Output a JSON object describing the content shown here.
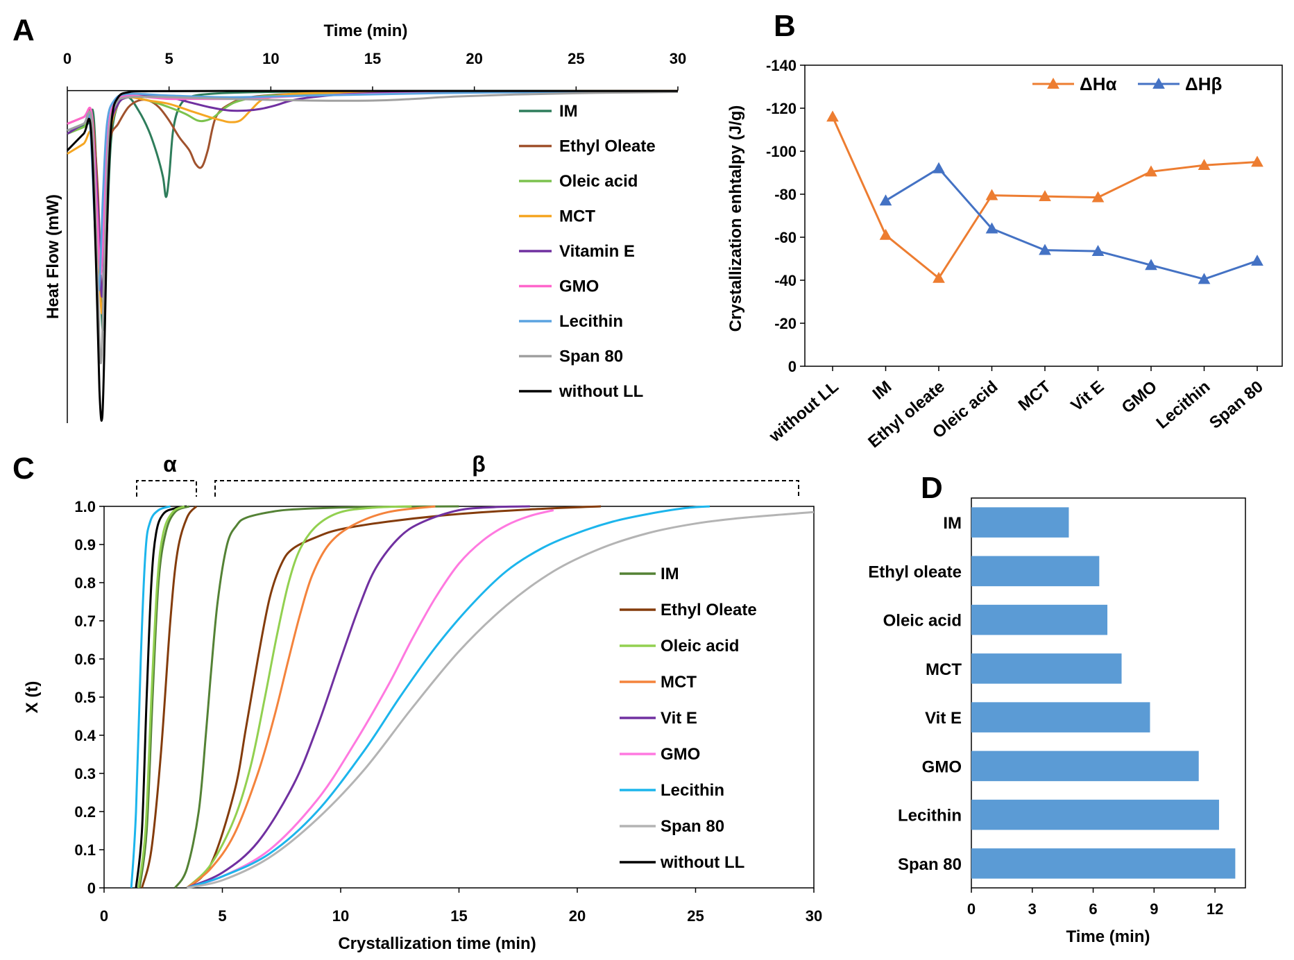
{
  "figure": {
    "panel_letters": [
      "A",
      "B",
      "C",
      "D"
    ],
    "bracket_alpha": "α",
    "bracket_beta": "β"
  },
  "chart_data": [
    {
      "panel": "A",
      "type": "line",
      "title": "",
      "xlabel": "Time (min)",
      "ylabel": "Heat Flow (mW)",
      "xlim": [
        0,
        30
      ],
      "ylim": [
        -1,
        0.02
      ],
      "xticks": [
        0,
        5,
        10,
        15,
        20,
        25,
        30
      ],
      "x_axis_position": "top",
      "y_ticks_shown": false,
      "legend_position": "right",
      "series": [
        {
          "name": "IM",
          "color": "#2E7D5B",
          "x": [
            0,
            1.0,
            1.3,
            1.55,
            1.75,
            1.95,
            2.15,
            2.5,
            3.0,
            3.5,
            4.0,
            4.4,
            4.7,
            4.85,
            5.0,
            5.2,
            5.5,
            6.0,
            7.0,
            9.0,
            12.0,
            16.0,
            20.0,
            25.0,
            30.0
          ],
          "y": [
            -0.12,
            -0.1,
            -0.08,
            -0.45,
            -0.72,
            -0.42,
            -0.15,
            -0.04,
            -0.02,
            -0.06,
            -0.12,
            -0.19,
            -0.26,
            -0.32,
            -0.26,
            -0.12,
            -0.05,
            -0.02,
            -0.01,
            -0.005,
            -0.003,
            -0.002,
            -0.001,
            -0.001,
            -0.001
          ]
        },
        {
          "name": "Ethyl Oleate",
          "color": "#A0522D",
          "x": [
            0,
            0.8,
            1.2,
            1.5,
            1.7,
            1.9,
            2.1,
            2.5,
            3.0,
            3.5,
            4.0,
            4.5,
            5.0,
            5.5,
            6.0,
            6.3,
            6.6,
            6.9,
            7.3,
            8.0,
            9.0,
            11.0,
            14.0,
            18.0,
            24.0,
            30.0
          ],
          "y": [
            -0.1,
            -0.08,
            -0.07,
            -0.3,
            -0.62,
            -0.35,
            -0.15,
            -0.1,
            -0.05,
            -0.03,
            -0.03,
            -0.05,
            -0.09,
            -0.14,
            -0.18,
            -0.22,
            -0.23,
            -0.18,
            -0.08,
            -0.04,
            -0.02,
            -0.01,
            -0.005,
            -0.003,
            -0.002,
            -0.001
          ]
        },
        {
          "name": "Oleic acid",
          "color": "#7CC24E",
          "x": [
            0,
            0.8,
            1.2,
            1.5,
            1.7,
            1.9,
            2.1,
            2.5,
            3.0,
            4.0,
            5.0,
            5.8,
            6.4,
            6.8,
            7.2,
            7.8,
            8.5,
            10.0,
            14.0,
            20.0,
            30.0
          ],
          "y": [
            -0.13,
            -0.11,
            -0.1,
            -0.38,
            -0.62,
            -0.35,
            -0.12,
            -0.04,
            -0.02,
            -0.03,
            -0.05,
            -0.07,
            -0.09,
            -0.09,
            -0.08,
            -0.05,
            -0.03,
            -0.015,
            -0.008,
            -0.004,
            -0.002
          ]
        },
        {
          "name": "MCT",
          "color": "#F5A623",
          "x": [
            0,
            0.8,
            1.2,
            1.5,
            1.7,
            1.9,
            2.1,
            2.5,
            3.0,
            4.0,
            5.0,
            6.0,
            7.0,
            7.6,
            8.0,
            8.5,
            9.0,
            9.5,
            10.0,
            11.0,
            13.0,
            17.0,
            22.0,
            30.0
          ],
          "y": [
            -0.19,
            -0.16,
            -0.14,
            -0.42,
            -0.67,
            -0.4,
            -0.14,
            -0.04,
            -0.02,
            -0.03,
            -0.04,
            -0.06,
            -0.08,
            -0.09,
            -0.095,
            -0.09,
            -0.06,
            -0.03,
            -0.02,
            -0.01,
            -0.006,
            -0.003,
            -0.002,
            -0.001
          ]
        },
        {
          "name": "Vitamin E",
          "color": "#7030A0",
          "x": [
            0,
            0.8,
            1.2,
            1.5,
            1.7,
            1.9,
            2.1,
            2.5,
            3.0,
            4.0,
            5.0,
            6.0,
            7.0,
            8.0,
            8.8,
            9.5,
            10.2,
            11.0,
            12.0,
            14.0,
            18.0,
            24.0,
            30.0
          ],
          "y": [
            -0.13,
            -0.1,
            -0.09,
            -0.35,
            -0.62,
            -0.35,
            -0.12,
            -0.04,
            -0.02,
            -0.015,
            -0.02,
            -0.035,
            -0.05,
            -0.06,
            -0.06,
            -0.055,
            -0.045,
            -0.03,
            -0.02,
            -0.01,
            -0.005,
            -0.003,
            -0.002
          ]
        },
        {
          "name": "GMO",
          "color": "#FF66CC",
          "x": [
            0,
            0.8,
            1.2,
            1.45,
            1.65,
            1.85,
            2.05,
            2.4,
            3.0,
            4.0,
            5.0,
            6.0,
            8.0,
            10.0,
            12.0,
            15.0,
            20.0,
            25.0,
            30.0
          ],
          "y": [
            -0.1,
            -0.08,
            -0.07,
            -0.35,
            -0.55,
            -0.3,
            -0.1,
            -0.03,
            -0.015,
            -0.02,
            -0.025,
            -0.025,
            -0.025,
            -0.02,
            -0.015,
            -0.01,
            -0.005,
            -0.003,
            -0.002
          ]
        },
        {
          "name": "Lecithin",
          "color": "#5BA3E0",
          "x": [
            0,
            0.8,
            1.1,
            1.35,
            1.55,
            1.75,
            1.95,
            2.3,
            3.0,
            5.0,
            8.0,
            12.0,
            18.0,
            24.0,
            30.0
          ],
          "y": [
            -0.12,
            -0.1,
            -0.09,
            -0.4,
            -0.6,
            -0.32,
            -0.1,
            -0.03,
            -0.01,
            -0.015,
            -0.02,
            -0.015,
            -0.008,
            -0.004,
            -0.002
          ]
        },
        {
          "name": "Span 80",
          "color": "#A0A0A0",
          "x": [
            0,
            0.8,
            1.2,
            1.45,
            1.65,
            1.85,
            2.05,
            2.4,
            3.0,
            5.0,
            8.0,
            12.0,
            15.0,
            17.0,
            19.0,
            22.0,
            26.0,
            30.0
          ],
          "y": [
            -0.12,
            -0.1,
            -0.09,
            -0.48,
            -0.82,
            -0.45,
            -0.13,
            -0.04,
            -0.02,
            -0.02,
            -0.025,
            -0.03,
            -0.03,
            -0.025,
            -0.018,
            -0.012,
            -0.007,
            -0.004
          ]
        },
        {
          "name": "without LL",
          "color": "#000000",
          "x": [
            0,
            0.8,
            1.15,
            1.4,
            1.58,
            1.72,
            1.85,
            2.0,
            2.2,
            2.5,
            3.0,
            4.0,
            8.0,
            15.0,
            30.0
          ],
          "y": [
            -0.18,
            -0.13,
            -0.11,
            -0.5,
            -0.9,
            -0.98,
            -0.7,
            -0.3,
            -0.08,
            -0.02,
            -0.005,
            -0.002,
            -0.001,
            -0.001,
            -0.001
          ]
        }
      ]
    },
    {
      "panel": "B",
      "type": "line",
      "title": "",
      "xlabel": "",
      "ylabel": "Crystallization enhtalpy (J/g)",
      "ylim": [
        0,
        -140
      ],
      "yticks": [
        "-140",
        "-120",
        "-100",
        "-80",
        "-60",
        "-40",
        "-20",
        "0"
      ],
      "ytick_values": [
        -140,
        -120,
        -100,
        -80,
        -60,
        -40,
        -20,
        0
      ],
      "categories": [
        "without LL",
        "IM",
        "Ethyl oleate",
        "Oleic acid",
        "MCT",
        "Vit E",
        "GMO",
        "Lecithin",
        "Span 80"
      ],
      "legend_position": "top-right",
      "series": [
        {
          "name": "ΔHα",
          "color": "#ED7D31",
          "values": [
            -116,
            -61,
            -41,
            -79.5,
            -79,
            -78.5,
            -90.5,
            -93.5,
            -95
          ]
        },
        {
          "name": "ΔHβ",
          "color": "#4472C4",
          "values": [
            null,
            -77,
            -92,
            -64,
            -54,
            -53.5,
            -47,
            -40.5,
            -49
          ]
        }
      ]
    },
    {
      "panel": "C",
      "type": "line",
      "title": "",
      "xlabel": "Crystallization time (min)",
      "ylabel": "X (t)",
      "xlim": [
        0,
        30
      ],
      "ylim": [
        0,
        1
      ],
      "xticks": [
        0,
        5,
        10,
        15,
        20,
        25,
        30
      ],
      "yticks": [
        "0",
        "0.1",
        "0.2",
        "0.3",
        "0.4",
        "0.5",
        "0.6",
        "0.7",
        "0.8",
        "0.9",
        "1.0"
      ],
      "ytick_values": [
        0,
        0.1,
        0.2,
        0.3,
        0.4,
        0.5,
        0.6,
        0.7,
        0.8,
        0.9,
        1.0
      ],
      "legend_position": "right",
      "series": [
        {
          "name": "IM",
          "color": "#548235",
          "x": [
            3.0,
            3.5,
            4.0,
            4.3,
            4.5,
            4.8,
            5.2,
            5.6,
            6.0,
            7.0,
            8.0,
            10.0,
            12.0,
            15.0
          ],
          "y": [
            0,
            0.05,
            0.2,
            0.4,
            0.55,
            0.75,
            0.9,
            0.95,
            0.97,
            0.985,
            0.992,
            0.997,
            0.999,
            1.0
          ]
        },
        {
          "name": "Ethyl Oleate",
          "color": "#843C0C",
          "x": [
            3.5,
            4.5,
            5.5,
            6.0,
            6.5,
            7.0,
            7.5,
            8.0,
            9.0,
            10.0,
            12.0,
            15.0,
            18.0,
            21.0
          ],
          "y": [
            0,
            0.06,
            0.25,
            0.42,
            0.6,
            0.76,
            0.85,
            0.89,
            0.92,
            0.94,
            0.96,
            0.98,
            0.992,
            1.0
          ]
        },
        {
          "name": "Oleic acid",
          "color": "#92D050",
          "x": [
            3.5,
            4.5,
            5.5,
            6.2,
            6.8,
            7.3,
            7.8,
            8.3,
            9.0,
            10.0,
            11.5,
            13.0
          ],
          "y": [
            0,
            0.06,
            0.18,
            0.32,
            0.5,
            0.66,
            0.8,
            0.89,
            0.95,
            0.985,
            0.997,
            1.0
          ]
        },
        {
          "name": "MCT",
          "color": "#F4833C",
          "x": [
            3.5,
            4.5,
            5.5,
            6.5,
            7.2,
            7.8,
            8.3,
            8.8,
            9.5,
            10.5,
            12.0,
            14.0
          ],
          "y": [
            0,
            0.05,
            0.14,
            0.3,
            0.45,
            0.6,
            0.72,
            0.82,
            0.9,
            0.95,
            0.985,
            1.0
          ]
        },
        {
          "name": "Vit E",
          "color": "#7030A0",
          "x": [
            3.5,
            5.0,
            6.5,
            8.0,
            9.0,
            10.0,
            10.8,
            11.5,
            12.5,
            13.5,
            15.0,
            16.5,
            18.0
          ],
          "y": [
            0,
            0.04,
            0.12,
            0.27,
            0.42,
            0.6,
            0.74,
            0.84,
            0.92,
            0.96,
            0.99,
            0.998,
            1.0
          ]
        },
        {
          "name": "GMO",
          "color": "#FF79E0",
          "x": [
            3.5,
            5.0,
            7.0,
            9.0,
            10.5,
            12.0,
            13.0,
            14.0,
            15.0,
            16.0,
            17.0,
            18.0,
            19.0
          ],
          "y": [
            0,
            0.03,
            0.1,
            0.23,
            0.37,
            0.53,
            0.65,
            0.76,
            0.85,
            0.91,
            0.95,
            0.975,
            0.99
          ]
        },
        {
          "name": "Lecithin",
          "color": "#1CB5EC",
          "x": [
            3.5,
            5.0,
            7.0,
            9.0,
            11.0,
            12.5,
            14.0,
            15.5,
            17.0,
            18.5,
            20.0,
            21.5,
            23.0,
            24.5,
            25.6
          ],
          "y": [
            0,
            0.03,
            0.09,
            0.2,
            0.36,
            0.5,
            0.63,
            0.74,
            0.83,
            0.89,
            0.93,
            0.96,
            0.98,
            0.995,
            1.0
          ]
        },
        {
          "name": "Span 80",
          "color": "#B4B4B4",
          "x": [
            3.5,
            5.0,
            7.0,
            9.0,
            11.0,
            13.0,
            15.0,
            17.0,
            19.0,
            21.0,
            23.0,
            25.0,
            27.0,
            30.0
          ],
          "y": [
            0,
            0.02,
            0.08,
            0.18,
            0.31,
            0.47,
            0.62,
            0.74,
            0.83,
            0.89,
            0.93,
            0.955,
            0.97,
            0.985
          ]
        },
        {
          "name": "without LL",
          "color": "#000000",
          "x": [
            1.35,
            1.6,
            1.8,
            2.0,
            2.2,
            2.5,
            3.0,
            3.5
          ],
          "y": [
            0,
            0.15,
            0.5,
            0.8,
            0.93,
            0.98,
            0.995,
            1.0
          ]
        },
        {
          "name": "IM α",
          "color": "#548235",
          "x": [
            1.5,
            1.8,
            2.05,
            2.3,
            2.6,
            3.0,
            3.6
          ],
          "y": [
            0,
            0.15,
            0.5,
            0.8,
            0.93,
            0.985,
            1.0
          ]
        },
        {
          "name": "Ethyl Oleate α",
          "color": "#843C0C",
          "x": [
            1.6,
            2.0,
            2.4,
            2.8,
            3.1,
            3.5,
            3.9
          ],
          "y": [
            0,
            0.1,
            0.35,
            0.7,
            0.88,
            0.97,
            1.0
          ]
        },
        {
          "name": "Oleic acid α",
          "color": "#92D050",
          "x": [
            1.45,
            1.75,
            2.0,
            2.25,
            2.5,
            2.9,
            3.4
          ],
          "y": [
            0,
            0.15,
            0.5,
            0.8,
            0.93,
            0.985,
            1.0
          ]
        },
        {
          "name": "Lecithin α",
          "color": "#1CB5EC",
          "x": [
            1.15,
            1.35,
            1.55,
            1.75,
            1.95,
            2.3,
            2.8
          ],
          "y": [
            0,
            0.2,
            0.6,
            0.88,
            0.96,
            0.99,
            1.0
          ]
        }
      ]
    },
    {
      "panel": "D",
      "type": "bar",
      "orientation": "horizontal",
      "title": "",
      "xlabel": "Time (min)",
      "ylabel": "",
      "xlim": [
        0,
        13.5
      ],
      "xticks": [
        0,
        3,
        6,
        9,
        12
      ],
      "categories": [
        "IM",
        "Ethyl oleate",
        "Oleic acid",
        "MCT",
        "Vit E",
        "GMO",
        "Lecithin",
        "Span 80"
      ],
      "values": [
        4.8,
        6.3,
        6.7,
        7.4,
        8.8,
        11.2,
        12.2,
        13.0
      ],
      "color": "#5B9BD5"
    }
  ]
}
